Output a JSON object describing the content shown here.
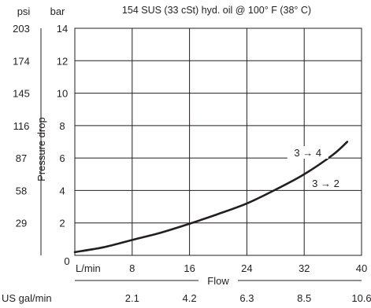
{
  "chart_data": {
    "type": "line",
    "title": "154 SUS (33 cSt) hyd. oil @ 100° F (38° C)",
    "xlabel": "Flow",
    "ylabel": "Pressure drop",
    "x_unit_primary": "L/min",
    "x_unit_secondary": "US gal/min",
    "y_unit_primary": "bar",
    "y_unit_secondary": "psi",
    "xlim": [
      0,
      40
    ],
    "ylim": [
      0,
      14
    ],
    "x_ticks": [
      0,
      8,
      16,
      24,
      32,
      40
    ],
    "x_tick_labels": [
      "0",
      "8",
      "16",
      "24",
      "32",
      "40"
    ],
    "x_secondary_tick_labels": [
      "2.1",
      "4.2",
      "6.3",
      "8.5",
      "10.6"
    ],
    "y_ticks": [
      2,
      4,
      6,
      8,
      10,
      12,
      14
    ],
    "y_tick_labels": [
      "2",
      "4",
      "6",
      "8",
      "10",
      "12",
      "14"
    ],
    "y_secondary_tick_labels": [
      "29",
      "58",
      "87",
      "116",
      "145",
      "174",
      "203"
    ],
    "grid": true,
    "series": [
      {
        "x": [
          0,
          4,
          8,
          12,
          16,
          20,
          24,
          28,
          32,
          36,
          38
        ],
        "y": [
          0.2,
          0.5,
          0.95,
          1.4,
          1.95,
          2.55,
          3.2,
          4.05,
          5.0,
          6.2,
          7.0
        ]
      }
    ],
    "annotations": [
      {
        "text": "3 → 4",
        "x": 32.5,
        "y": 6.2
      },
      {
        "text": "3 → 2",
        "x": 35,
        "y": 4.3
      }
    ]
  }
}
